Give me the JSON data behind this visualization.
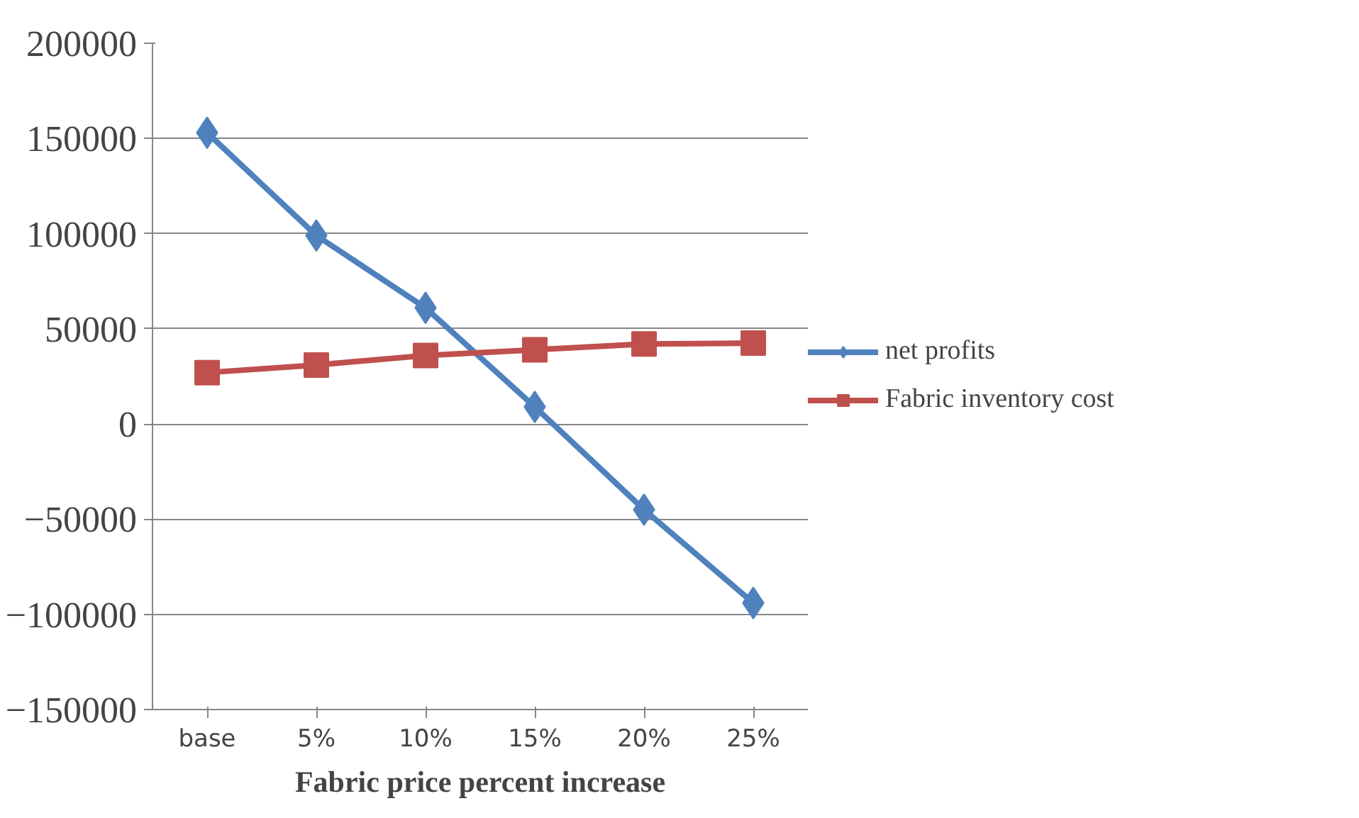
{
  "chart_data": {
    "type": "line",
    "xlabel": "Fabric price percent increase",
    "categories": [
      "base",
      "5%",
      "10%",
      "15%",
      "20%",
      "25%"
    ],
    "series": [
      {
        "name": "net profits",
        "color": "#4f81bd",
        "marker": "diamond",
        "values": [
          153000,
          99000,
          61000,
          9000,
          -45000,
          -94000
        ]
      },
      {
        "name": "Fabric inventory cost",
        "color": "#c0504d",
        "marker": "square",
        "values": [
          27000,
          31000,
          36000,
          39000,
          42000,
          42500
        ]
      }
    ],
    "ylim": [
      -150000,
      200000
    ],
    "yticks": [
      -150000,
      -100000,
      -50000,
      0,
      50000,
      100000,
      150000,
      200000
    ],
    "grid": "y",
    "legend": "right"
  }
}
